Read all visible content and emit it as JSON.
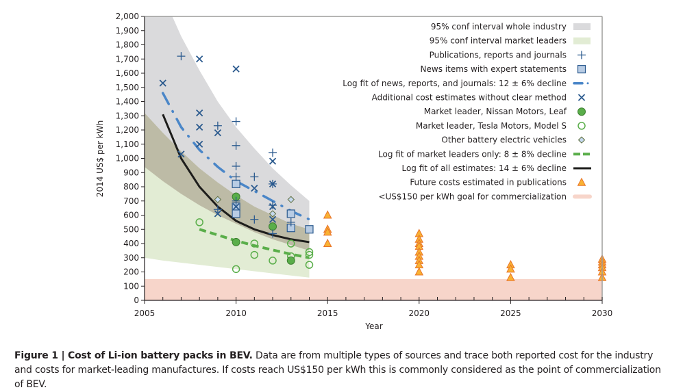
{
  "chart_data": {
    "type": "scatter",
    "title": "",
    "xlabel": "Year",
    "ylabel": "2014 US$ per kWh",
    "xlim": [
      2005,
      2030
    ],
    "ylim": [
      0,
      2000
    ],
    "x_ticks": [
      2005,
      2010,
      2015,
      2020,
      2025,
      2030
    ],
    "x_tick_labels": [
      "2005",
      "2010",
      "2015",
      "2020",
      "2025",
      "2030"
    ],
    "y_ticks": [
      0,
      100,
      200,
      300,
      400,
      500,
      600,
      700,
      800,
      900,
      1000,
      1100,
      1200,
      1300,
      1400,
      1500,
      1600,
      1700,
      1800,
      1900,
      2000
    ],
    "y_tick_labels": [
      "0",
      "100",
      "200",
      "300",
      "400",
      "500",
      "600",
      "700",
      "800",
      "900",
      "1,000",
      "1,100",
      "1,200",
      "1,300",
      "1,400",
      "1,500",
      "1,600",
      "1,700",
      "1,800",
      "1,900",
      "2,000"
    ],
    "grid": false,
    "legend_position": "top-right",
    "legend": [
      {
        "key": "ci_industry",
        "label": "95% conf interval whole industry"
      },
      {
        "key": "ci_leaders",
        "label": "95% conf interval market leaders"
      },
      {
        "key": "publications",
        "label": "Publications, reports and journals"
      },
      {
        "key": "news",
        "label": "News items with expert statements"
      },
      {
        "key": "fit_news",
        "label": "Log fit of news, reports, and journals: 12 ± 6% decline"
      },
      {
        "key": "additional",
        "label": "Additional cost estimates without clear method"
      },
      {
        "key": "nissan",
        "label": "Market leader, Nissan Motors, Leaf"
      },
      {
        "key": "tesla",
        "label": "Market leader, Tesla Motors, Model S"
      },
      {
        "key": "other_bev",
        "label": "Other battery electric vehicles"
      },
      {
        "key": "fit_leaders",
        "label": "Log fit of market leaders only: 8 ± 8% decline"
      },
      {
        "key": "fit_all",
        "label": "Log fit of all estimates: 14 ± 6% decline"
      },
      {
        "key": "future",
        "label": "Future costs estimated in publications"
      },
      {
        "key": "goal",
        "label": "<US$150 per kWh goal for commercialization"
      }
    ],
    "colors": {
      "ci_industry": "#dadadc",
      "ci_leaders": "#e2ecd4",
      "ci_overlap": "#bdbba6",
      "publications": "#2b5a8e",
      "news_fill": "#b8cce4",
      "news_stroke": "#2b5a8e",
      "fit_news": "#4a86c8",
      "additional": "#2b5a8e",
      "nissan_fill": "#5aae4a",
      "nissan_stroke": "#3d7f31",
      "tesla": "#5aae4a",
      "other_bev_fill": "#c5d8ee",
      "other_bev_stroke": "#5b6b3a",
      "fit_leaders": "#5aae4a",
      "fit_all": "#1d1d1b",
      "future_fill": "#f9b233",
      "future_stroke": "#e8742a",
      "goal": "#f7d5ca"
    },
    "bands": {
      "ci_industry": {
        "x": [
          2005,
          2006,
          2007,
          2008,
          2009,
          2010,
          2011,
          2012,
          2013,
          2014
        ],
        "upper": [
          2450,
          2150,
          1860,
          1620,
          1400,
          1220,
          1070,
          930,
          810,
          700
        ],
        "lower": [
          1320,
          1140,
          990,
          860,
          760,
          670,
          590,
          520,
          460,
          410
        ]
      },
      "ci_leaders": {
        "x": [
          2005,
          2006,
          2007,
          2008,
          2009,
          2010,
          2011,
          2012,
          2013,
          2014
        ],
        "upper": [
          940,
          880,
          820,
          760,
          700,
          650,
          610,
          570,
          530,
          500
        ],
        "lower": [
          300,
          280,
          265,
          250,
          235,
          220,
          205,
          190,
          175,
          160
        ]
      },
      "goal": {
        "x": [
          2005,
          2030
        ],
        "lower": 0,
        "upper": 150
      }
    },
    "lines": {
      "fit_all": {
        "x": [
          2006,
          2007,
          2008,
          2009,
          2010,
          2011,
          2012,
          2013,
          2014
        ],
        "y": [
          1310,
          1000,
          800,
          660,
          560,
          500,
          460,
          430,
          410
        ]
      },
      "fit_news": {
        "x": [
          2006,
          2007,
          2008,
          2009,
          2010,
          2011,
          2012,
          2013,
          2014
        ],
        "y": [
          1460,
          1220,
          1060,
          940,
          840,
          770,
          700,
          630,
          570
        ]
      },
      "fit_leaders": {
        "x": [
          2008,
          2009,
          2010,
          2011,
          2012,
          2013,
          2014
        ],
        "y": [
          500,
          460,
          420,
          385,
          355,
          325,
          300
        ]
      }
    },
    "series": [
      {
        "name": "Publications, reports and journals",
        "key": "publications",
        "points": [
          [
            2007,
            1720
          ],
          [
            2009,
            1230
          ],
          [
            2010,
            1260
          ],
          [
            2010,
            1090
          ],
          [
            2010,
            945
          ],
          [
            2010,
            870
          ],
          [
            2010,
            700
          ],
          [
            2011,
            870
          ],
          [
            2011,
            570
          ],
          [
            2012,
            1040
          ],
          [
            2012,
            820
          ],
          [
            2012,
            670
          ],
          [
            2012,
            470
          ],
          [
            2013,
            550
          ],
          [
            2009,
            640
          ]
        ]
      },
      {
        "name": "News items with expert statements",
        "key": "news",
        "points": [
          [
            2010,
            820
          ],
          [
            2010,
            660
          ],
          [
            2010,
            610
          ],
          [
            2013,
            610
          ],
          [
            2013,
            510
          ],
          [
            2014,
            500
          ]
        ]
      },
      {
        "name": "Additional cost estimates without clear method",
        "key": "additional",
        "points": [
          [
            2006,
            1530
          ],
          [
            2007,
            1030
          ],
          [
            2008,
            1700
          ],
          [
            2008,
            1320
          ],
          [
            2008,
            1220
          ],
          [
            2008,
            1100
          ],
          [
            2009,
            1180
          ],
          [
            2009,
            610
          ],
          [
            2010,
            1630
          ],
          [
            2010,
            660
          ],
          [
            2011,
            790
          ],
          [
            2012,
            980
          ],
          [
            2012,
            820
          ],
          [
            2012,
            660
          ],
          [
            2012,
            570
          ]
        ]
      },
      {
        "name": "Market leader, Nissan Motors, Leaf",
        "key": "nissan",
        "points": [
          [
            2010,
            730
          ],
          [
            2010,
            410
          ],
          [
            2012,
            520
          ],
          [
            2013,
            280
          ]
        ]
      },
      {
        "name": "Market leader, Tesla Motors, Model S",
        "key": "tesla",
        "points": [
          [
            2008,
            550
          ],
          [
            2010,
            410
          ],
          [
            2010,
            220
          ],
          [
            2011,
            400
          ],
          [
            2011,
            320
          ],
          [
            2012,
            280
          ],
          [
            2013,
            400
          ],
          [
            2013,
            310
          ],
          [
            2014,
            340
          ],
          [
            2014,
            320
          ],
          [
            2014,
            250
          ]
        ]
      },
      {
        "name": "Other battery electric vehicles",
        "key": "other_bev",
        "points": [
          [
            2009,
            710
          ],
          [
            2012,
            610
          ],
          [
            2013,
            710
          ],
          [
            2013,
            510
          ]
        ]
      },
      {
        "name": "Future costs estimated in publications",
        "key": "future",
        "points": [
          [
            2015,
            600
          ],
          [
            2015,
            500
          ],
          [
            2015,
            480
          ],
          [
            2015,
            400
          ],
          [
            2020,
            470
          ],
          [
            2020,
            430
          ],
          [
            2020,
            400
          ],
          [
            2020,
            380
          ],
          [
            2020,
            340
          ],
          [
            2020,
            310
          ],
          [
            2020,
            280
          ],
          [
            2020,
            250
          ],
          [
            2020,
            200
          ],
          [
            2025,
            250
          ],
          [
            2025,
            220
          ],
          [
            2025,
            160
          ],
          [
            2030,
            290
          ],
          [
            2030,
            270
          ],
          [
            2030,
            250
          ],
          [
            2030,
            230
          ],
          [
            2030,
            200
          ],
          [
            2030,
            160
          ]
        ]
      }
    ]
  },
  "caption": {
    "figure_label": "Figure 1 | Cost of Li-ion battery packs in BEV.",
    "text": " Data are from multiple types of sources and trace both reported cost for the industry and costs for market-leading manufactures. If costs reach US$150 per kWh this is commonly considered as the point of commercialization of BEV."
  }
}
